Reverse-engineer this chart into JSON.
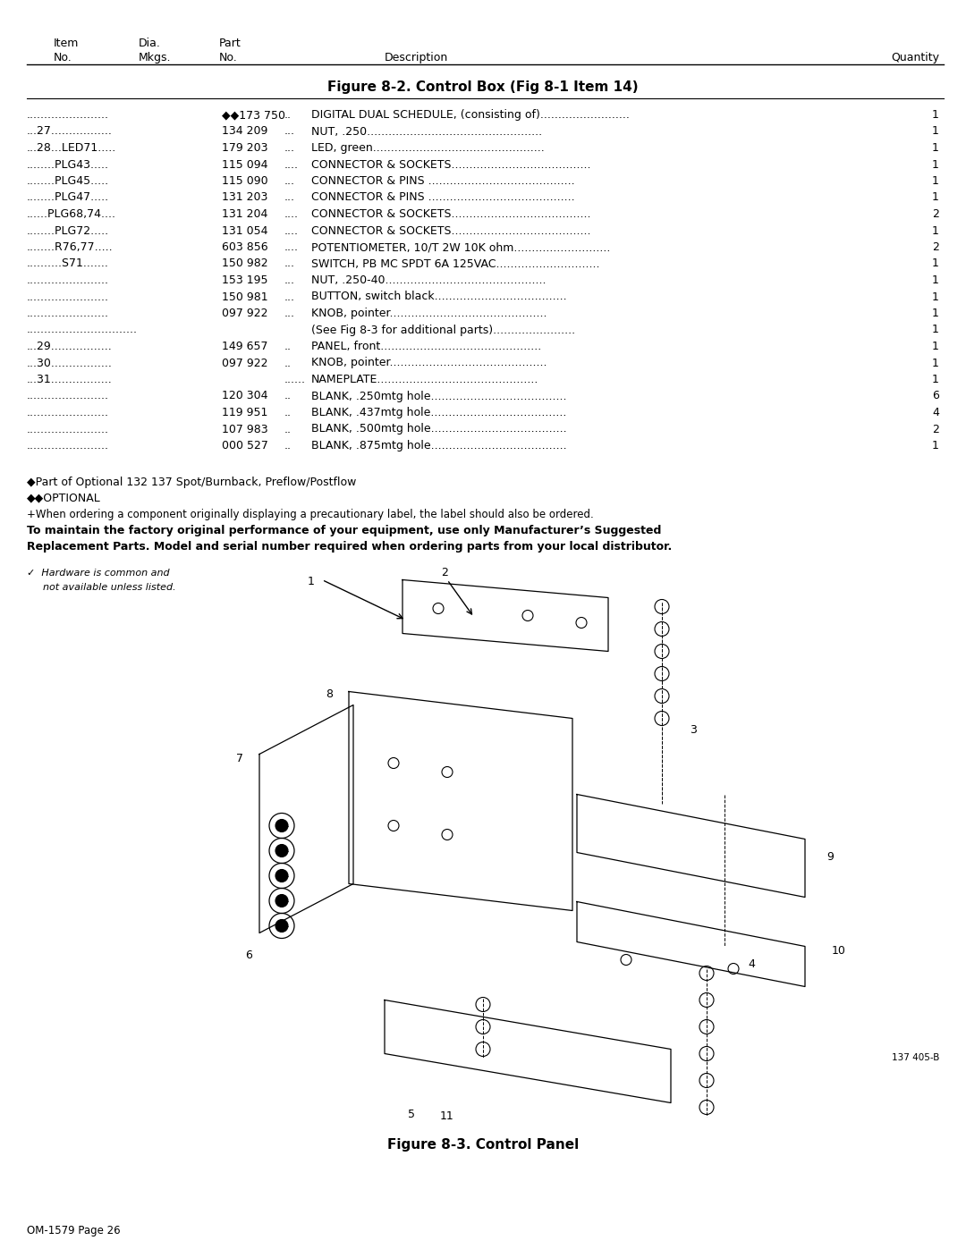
{
  "page_label": "OM-1579 Page 26",
  "figure_title": "Figure 8-2. Control Box (Fig 8-1 Item 14)",
  "figure_caption": "Figure 8-3. Control Panel",
  "figure_ref": "137 405-B",
  "bg_color": "#ffffff",
  "rows": [
    [
      ".......................",
      "◆◆173 750",
      "..",
      "DIGITAL DUAL SCHEDULE, (consisting of).........................",
      "1"
    ],
    [
      "...27.................",
      "134 209",
      "...",
      "NUT, .250.................................................",
      "1"
    ],
    [
      "...28...LED71.....",
      "179 203",
      "...",
      "LED, green................................................",
      "1"
    ],
    [
      "........PLG43.....",
      "115 094",
      "....",
      "CONNECTOR & SOCKETS.......................................",
      "1"
    ],
    [
      "........PLG45.....",
      "115 090",
      "...",
      "CONNECTOR & PINS .........................................",
      "1"
    ],
    [
      "........PLG47.....",
      "131 203",
      "...",
      "CONNECTOR & PINS .........................................",
      "1"
    ],
    [
      "......PLG68,74....",
      "131 204",
      "....",
      "CONNECTOR & SOCKETS.......................................",
      "2"
    ],
    [
      "........PLG72.....",
      "131 054",
      "....",
      "CONNECTOR & SOCKETS.......................................",
      "1"
    ],
    [
      "........R76,77.....",
      "603 856",
      "....",
      "POTENTIOMETER, 10/T 2W 10K ohm...........................",
      "2"
    ],
    [
      "..........S71.......",
      "150 982",
      "...",
      "SWITCH, PB MC SPDT 6A 125VAC.............................",
      "1"
    ],
    [
      ".......................",
      "153 195",
      "...",
      "NUT, .250-40.............................................",
      "1"
    ],
    [
      ".......................",
      "150 981",
      "...",
      "BUTTON, switch black.....................................",
      "1"
    ],
    [
      ".......................",
      "097 922",
      "...",
      "KNOB, pointer............................................",
      "1"
    ],
    [
      "...............................",
      "",
      "",
      "(See Fig 8-3 for additional parts).......................",
      "1"
    ],
    [
      "...29.................",
      "149 657",
      "..",
      "PANEL, front.............................................",
      "1"
    ],
    [
      "...30.................",
      "097 922",
      "..",
      "KNOB, pointer............................................",
      "1"
    ],
    [
      "...31.................",
      "",
      "......",
      "NAMEPLATE.............................................",
      "1"
    ],
    [
      ".......................",
      "120 304",
      "..",
      "BLANK, .250mtg hole......................................",
      "6"
    ],
    [
      ".......................",
      "119 951",
      "..",
      "BLANK, .437mtg hole......................................",
      "4"
    ],
    [
      ".......................",
      "107 983",
      "..",
      "BLANK, .500mtg hole......................................",
      "2"
    ],
    [
      ".......................",
      "000 527",
      "..",
      "BLANK, .875mtg hole......................................",
      "1"
    ]
  ],
  "footnote1": "◆Part of Optional 132 137 Spot/Burnback, Preflow/Postflow",
  "footnote2": "◆◆OPTIONAL",
  "footnote3": "+When ordering a component originally displaying a precautionary label, the label should also be ordered.",
  "footnote4a": "To maintain the factory original performance of your equipment, use only Manufacturer’s Suggested",
  "footnote4b": "Replacement Parts. Model and serial number required when ordering parts from your local distributor.",
  "hw_note1": "Hardware is common and",
  "hw_note2": "not available unless listed."
}
